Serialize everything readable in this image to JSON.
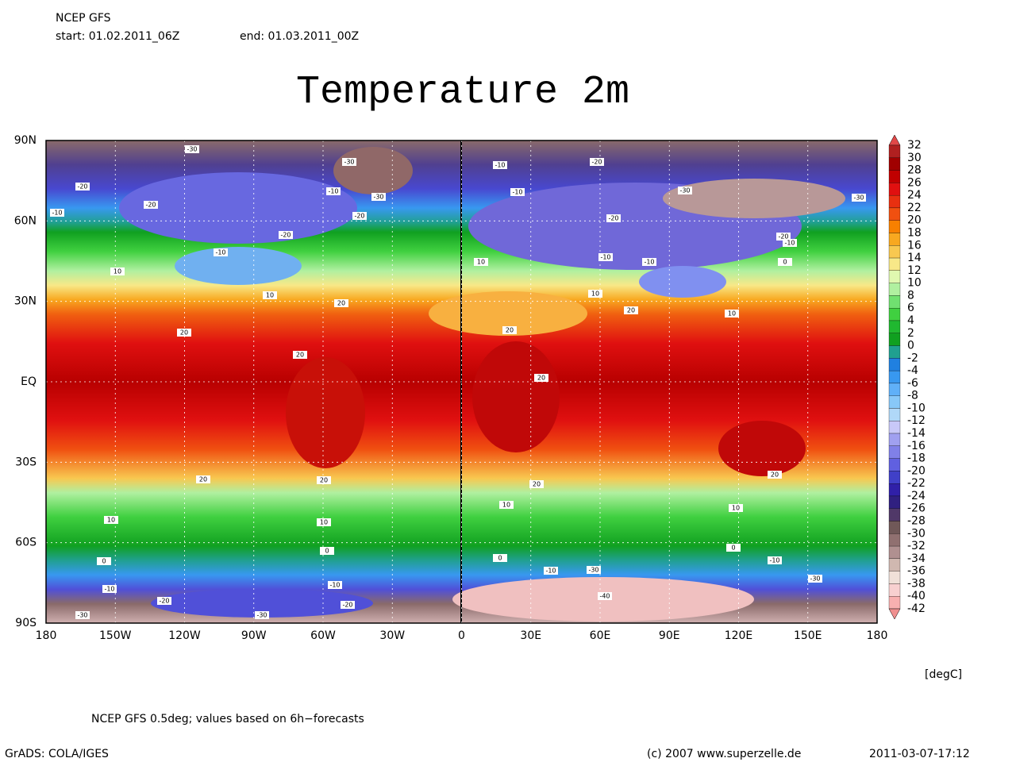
{
  "header": {
    "model": "NCEP GFS",
    "start": "start: 01.02.2011_06Z",
    "end": "end: 01.03.2011_00Z"
  },
  "title": "Temperature 2m",
  "map": {
    "lat_labels": [
      "90N",
      "60N",
      "30N",
      "EQ",
      "30S",
      "60S",
      "90S"
    ],
    "lon_labels": [
      "180",
      "150W",
      "120W",
      "90W",
      "60W",
      "30W",
      "0",
      "30E",
      "60E",
      "90E",
      "120E",
      "150E",
      "180"
    ],
    "contour_labels": [
      -30,
      -20,
      -10,
      -20,
      -20,
      -10,
      10,
      10,
      20,
      20,
      20,
      20,
      20,
      10,
      10,
      0,
      0,
      -10,
      -20,
      -30,
      -30,
      -20,
      -10,
      0,
      -10,
      -30,
      -40,
      -10,
      -30,
      0,
      10,
      10,
      20,
      20,
      10,
      20,
      10,
      20,
      20,
      -10,
      -10,
      -30,
      -20,
      -20,
      -10,
      -10,
      -30,
      -20,
      -10,
      0,
      10,
      -30,
      -30,
      -20,
      -10
    ]
  },
  "legend": {
    "levels": [
      32,
      30,
      28,
      26,
      24,
      22,
      20,
      18,
      16,
      14,
      12,
      10,
      8,
      6,
      4,
      2,
      0,
      -2,
      -4,
      -6,
      -8,
      -10,
      -12,
      -14,
      -16,
      -18,
      -20,
      -22,
      -24,
      -26,
      -28,
      -30,
      -32,
      -34,
      -36,
      -38,
      -40,
      -42
    ],
    "colors": [
      "#e04848",
      "#b02020",
      "#a00000",
      "#c00000",
      "#e01010",
      "#e83010",
      "#f05010",
      "#f88000",
      "#f8a820",
      "#f8c850",
      "#f8e888",
      "#e0f8b0",
      "#b0f0a0",
      "#70e070",
      "#40d040",
      "#20b830",
      "#10a020",
      "#20a090",
      "#2080e0",
      "#3898f0",
      "#60b0f8",
      "#88c8f8",
      "#b0d8f8",
      "#c8c8f8",
      "#a0a0f0",
      "#8080e8",
      "#6060e0",
      "#4040c8",
      "#3020a8",
      "#302080",
      "#503868",
      "#705858",
      "#907070",
      "#b09090",
      "#d0b8b0",
      "#f0e0d8",
      "#f8d0d0",
      "#f8b0b0",
      "#f09090"
    ],
    "unit": "[degC]"
  },
  "footer": {
    "note": "NCEP GFS 0.5deg; values based on 6h−forecasts",
    "software": "GrADS: COLA/IGES",
    "credit": "(c) 2007 www.superzelle.de",
    "timestamp": "2011-03-07-17:12"
  }
}
